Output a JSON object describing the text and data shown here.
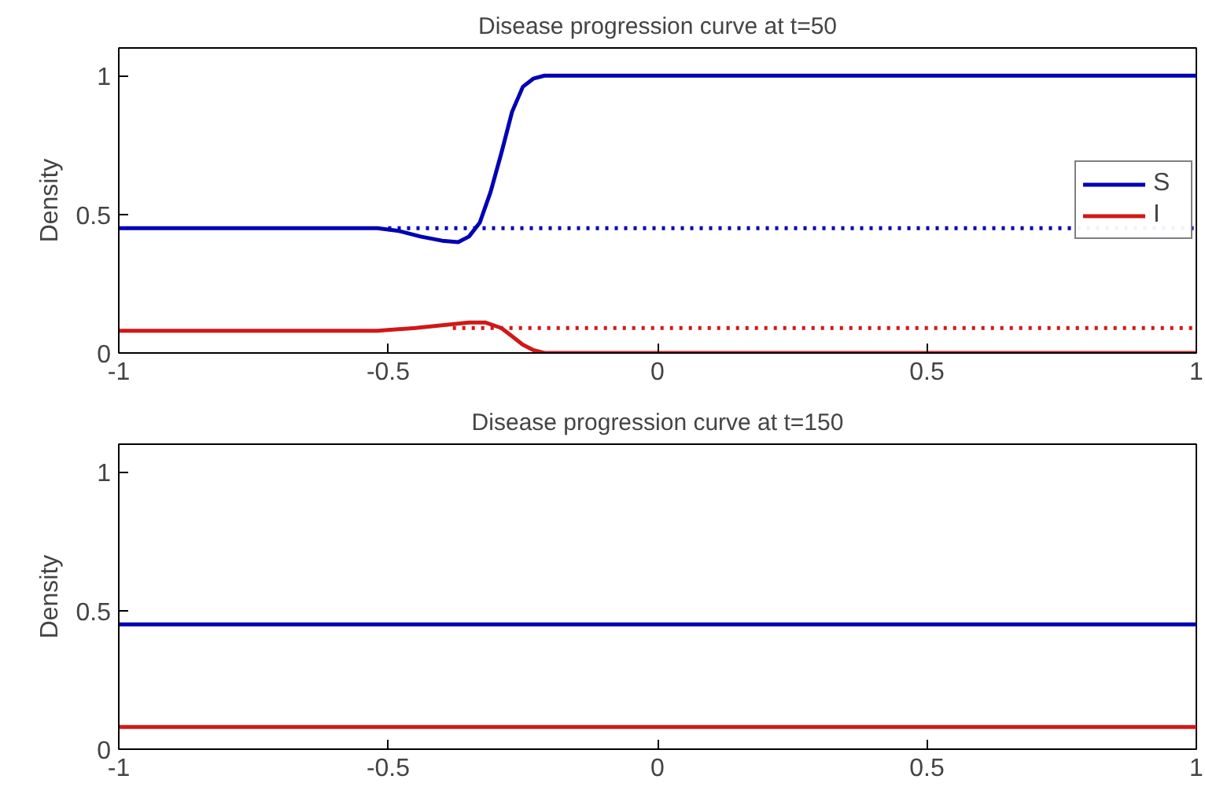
{
  "chart_data": [
    {
      "type": "line",
      "title": "Disease progression curve at t=50",
      "ylabel": "Density",
      "xlim": [
        -1,
        1
      ],
      "ylim": [
        0,
        1.1
      ],
      "xticks": [
        -1,
        -0.5,
        0,
        0.5,
        1
      ],
      "yticks": [
        0,
        0.5,
        1
      ],
      "grid": false,
      "legend": "right",
      "series": [
        {
          "name": "S",
          "color": "#0000b4",
          "x": [
            -1,
            -0.52,
            -0.48,
            -0.44,
            -0.4,
            -0.37,
            -0.35,
            -0.33,
            -0.31,
            -0.29,
            -0.27,
            -0.25,
            -0.23,
            -0.21,
            1
          ],
          "values": [
            0.45,
            0.45,
            0.44,
            0.42,
            0.405,
            0.4,
            0.42,
            0.47,
            0.58,
            0.72,
            0.87,
            0.96,
            0.99,
            1.0,
            1.0
          ]
        },
        {
          "name": "I",
          "color": "#d01818",
          "x": [
            -1,
            -0.52,
            -0.45,
            -0.4,
            -0.35,
            -0.32,
            -0.29,
            -0.27,
            -0.25,
            -0.23,
            -0.21,
            1
          ],
          "values": [
            0.08,
            0.08,
            0.09,
            0.1,
            0.11,
            0.11,
            0.09,
            0.06,
            0.03,
            0.01,
            0.0,
            0.0
          ]
        },
        {
          "color": "#0000b4",
          "line_style": "dotted",
          "x": [
            -0.5,
            1
          ],
          "values": [
            0.45,
            0.45
          ]
        },
        {
          "color": "#d01818",
          "line_style": "dotted",
          "x": [
            -0.38,
            1
          ],
          "values": [
            0.09,
            0.09
          ]
        }
      ]
    },
    {
      "type": "line",
      "title": "Disease progression curve at t=150",
      "ylabel": "Density",
      "xlim": [
        -1,
        1
      ],
      "ylim": [
        0,
        1.1
      ],
      "xticks": [
        -1,
        -0.5,
        0,
        0.5,
        1
      ],
      "yticks": [
        0,
        0.5,
        1
      ],
      "grid": false,
      "series": [
        {
          "color": "#0000b4",
          "x": [
            -1,
            1
          ],
          "values": [
            0.45,
            0.45
          ]
        },
        {
          "color": "#d01818",
          "x": [
            -1,
            1
          ],
          "values": [
            0.08,
            0.08
          ]
        }
      ]
    }
  ]
}
